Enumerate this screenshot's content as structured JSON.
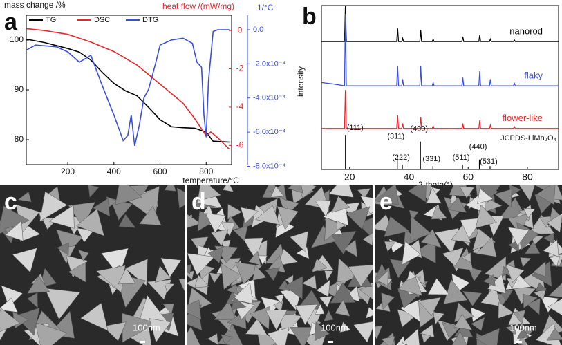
{
  "chart_data": [
    {
      "type": "line",
      "panel": "a",
      "ylabel": "mass change /%",
      "y2label": "heat flow /(mW/mg)",
      "y3label": "1/°C",
      "xlabel": "temperature/°C",
      "xlim": [
        20,
        910
      ],
      "xticks": [
        200,
        400,
        600,
        800
      ],
      "ylim": [
        75,
        105
      ],
      "yticks": [
        80,
        90,
        100
      ],
      "y2lim": [
        -7,
        0.8
      ],
      "y2ticks": [
        0,
        -2,
        -4,
        -6
      ],
      "y3lim": [
        -0.00079,
        8.5e-05
      ],
      "y3ticks": [
        {
          "value": 0,
          "label": "0.0"
        },
        {
          "value": -0.0002,
          "label": "-2.0x10⁻⁴"
        },
        {
          "value": -0.0004,
          "label": "-4.0x10⁻⁴"
        },
        {
          "value": -0.0006,
          "label": "-6.0x10⁻⁴"
        },
        {
          "value": -0.0008,
          "label": "-8.0x10⁻⁴"
        }
      ],
      "series": [
        {
          "name": "TG",
          "color": "#000000",
          "axis": "y",
          "x": [
            20,
            100,
            200,
            250,
            300,
            350,
            400,
            450,
            500,
            550,
            600,
            650,
            700,
            750,
            800,
            830,
            900
          ],
          "values": [
            100.2,
            99.5,
            98.3,
            97.6,
            96,
            93.5,
            91.3,
            89.8,
            88.8,
            86.5,
            84,
            82.6,
            82.4,
            82.3,
            81.5,
            79.7,
            79.5
          ]
        },
        {
          "name": "DSC",
          "color": "#e8262c",
          "axis": "y2",
          "x": [
            20,
            100,
            200,
            300,
            400,
            500,
            600,
            700,
            750,
            800,
            820,
            850,
            900
          ],
          "values": [
            0.1,
            0,
            -0.2,
            -0.6,
            -1.1,
            -1.8,
            -2.8,
            -3.8,
            -4.6,
            -5.5,
            -5.3,
            -5.6,
            -6.2
          ]
        },
        {
          "name": "DTG",
          "color": "#3a4fd8",
          "axis": "y3",
          "x": [
            20,
            60,
            150,
            200,
            250,
            300,
            350,
            400,
            440,
            460,
            475,
            490,
            510,
            530,
            550,
            580,
            600,
            650,
            700,
            740,
            760,
            780,
            790,
            800,
            810,
            830,
            850,
            900
          ],
          "values": [
            -0.00012,
            -9e-05,
            -0.0001,
            -0.00013,
            -0.00019,
            -0.00015,
            -0.00033,
            -0.0005,
            -0.00065,
            -0.00062,
            -0.0005,
            -0.00068,
            -0.00056,
            -0.0004,
            -0.00035,
            -0.0002,
            -9e-05,
            -6e-05,
            -5e-05,
            -8e-05,
            -0.00019,
            -0.00022,
            -0.0005,
            -0.00063,
            -0.0003,
            -1e-05,
            0,
            0
          ]
        }
      ]
    },
    {
      "type": "line",
      "panel": "b",
      "ylabel": "intensity",
      "xlabel": "2-theta(°)",
      "xlim": [
        10.5,
        90.5
      ],
      "xticks": [
        20,
        40,
        60,
        80
      ],
      "ylim": [
        0,
        100
      ],
      "x": [
        10.5,
        15,
        18.3,
        18.6,
        18.9,
        25,
        35.9,
        36.2,
        36.5,
        37.6,
        37.9,
        38.2,
        43.7,
        44.0,
        44.3,
        47.9,
        48.2,
        48.5,
        57.9,
        58.2,
        58.5,
        63.6,
        63.9,
        64.2,
        67.2,
        67.5,
        67.8,
        75.3,
        75.6,
        75.9,
        90.5
      ],
      "series": [
        {
          "name": "nanorod",
          "color": "#000000",
          "values": [
            78,
            78,
            78,
            100,
            78,
            78,
            78,
            86,
            78,
            78,
            80,
            78,
            78,
            85,
            78,
            78,
            79.5,
            78,
            78,
            81,
            78,
            78,
            82,
            78,
            78,
            79.5,
            78,
            78,
            79,
            78,
            78
          ]
        },
        {
          "name": "flaky",
          "color": "#3a4fd8",
          "values": [
            53,
            52,
            51,
            95,
            51,
            51,
            51,
            63,
            51,
            51,
            55,
            51,
            51,
            63,
            51,
            51,
            53,
            51,
            51,
            56,
            51,
            51,
            60,
            51,
            51,
            55,
            51,
            51,
            52.5,
            51,
            51
          ]
        },
        {
          "name": "flower-like",
          "color": "#e8262c",
          "values": [
            25,
            25,
            25,
            48.5,
            25,
            25,
            25,
            33,
            25,
            25,
            28,
            25,
            25,
            32,
            25,
            25,
            26.5,
            25,
            25,
            28,
            25,
            25,
            30,
            25,
            25,
            27,
            25,
            25,
            26,
            25,
            25
          ]
        }
      ],
      "reference": {
        "name": "JCPDS-LiMn₂O₄",
        "x": [
          18.6,
          36.1,
          37.8,
          43.9,
          48.1,
          58.1,
          63.8,
          67.4
        ],
        "labels": [
          "(111)",
          "(311)",
          "(222)",
          "(400)",
          "(331)",
          "(511)",
          "(440)",
          "(531)"
        ],
        "values": [
          21,
          9,
          3,
          17,
          2,
          3,
          6,
          2
        ]
      }
    }
  ],
  "images": [
    {
      "label": "c",
      "scale_bar": "100nm"
    },
    {
      "label": "d",
      "scale_bar": "100nm"
    },
    {
      "label": "e",
      "scale_bar": "100nm"
    }
  ]
}
